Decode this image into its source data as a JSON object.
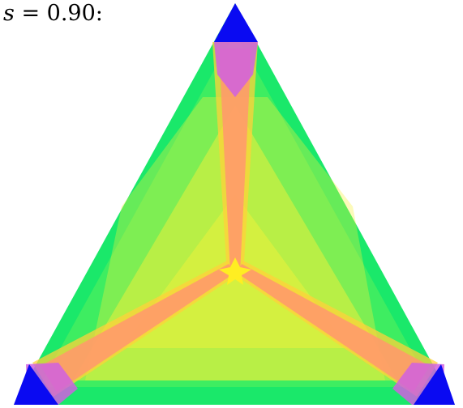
{
  "caption": {
    "variable": "s",
    "equals": " = ",
    "value": "0.90",
    "suffix": ":"
  },
  "colors": {
    "outer_green": "#1ae86a",
    "light_green": "#5cf05a",
    "yellow_green": "#d4f040",
    "yellow": "#f6f23a",
    "orange_yellow": "#ffd23a",
    "salmon": "#ff9a6a",
    "magenta": "#d060e0",
    "blue": "#0a0af2",
    "center_yellow": "#ffee22"
  },
  "regions": [
    "outer-triangle",
    "inner-triangle",
    "arm-top",
    "arm-left",
    "arm-right",
    "corner-top",
    "corner-left",
    "corner-right"
  ]
}
